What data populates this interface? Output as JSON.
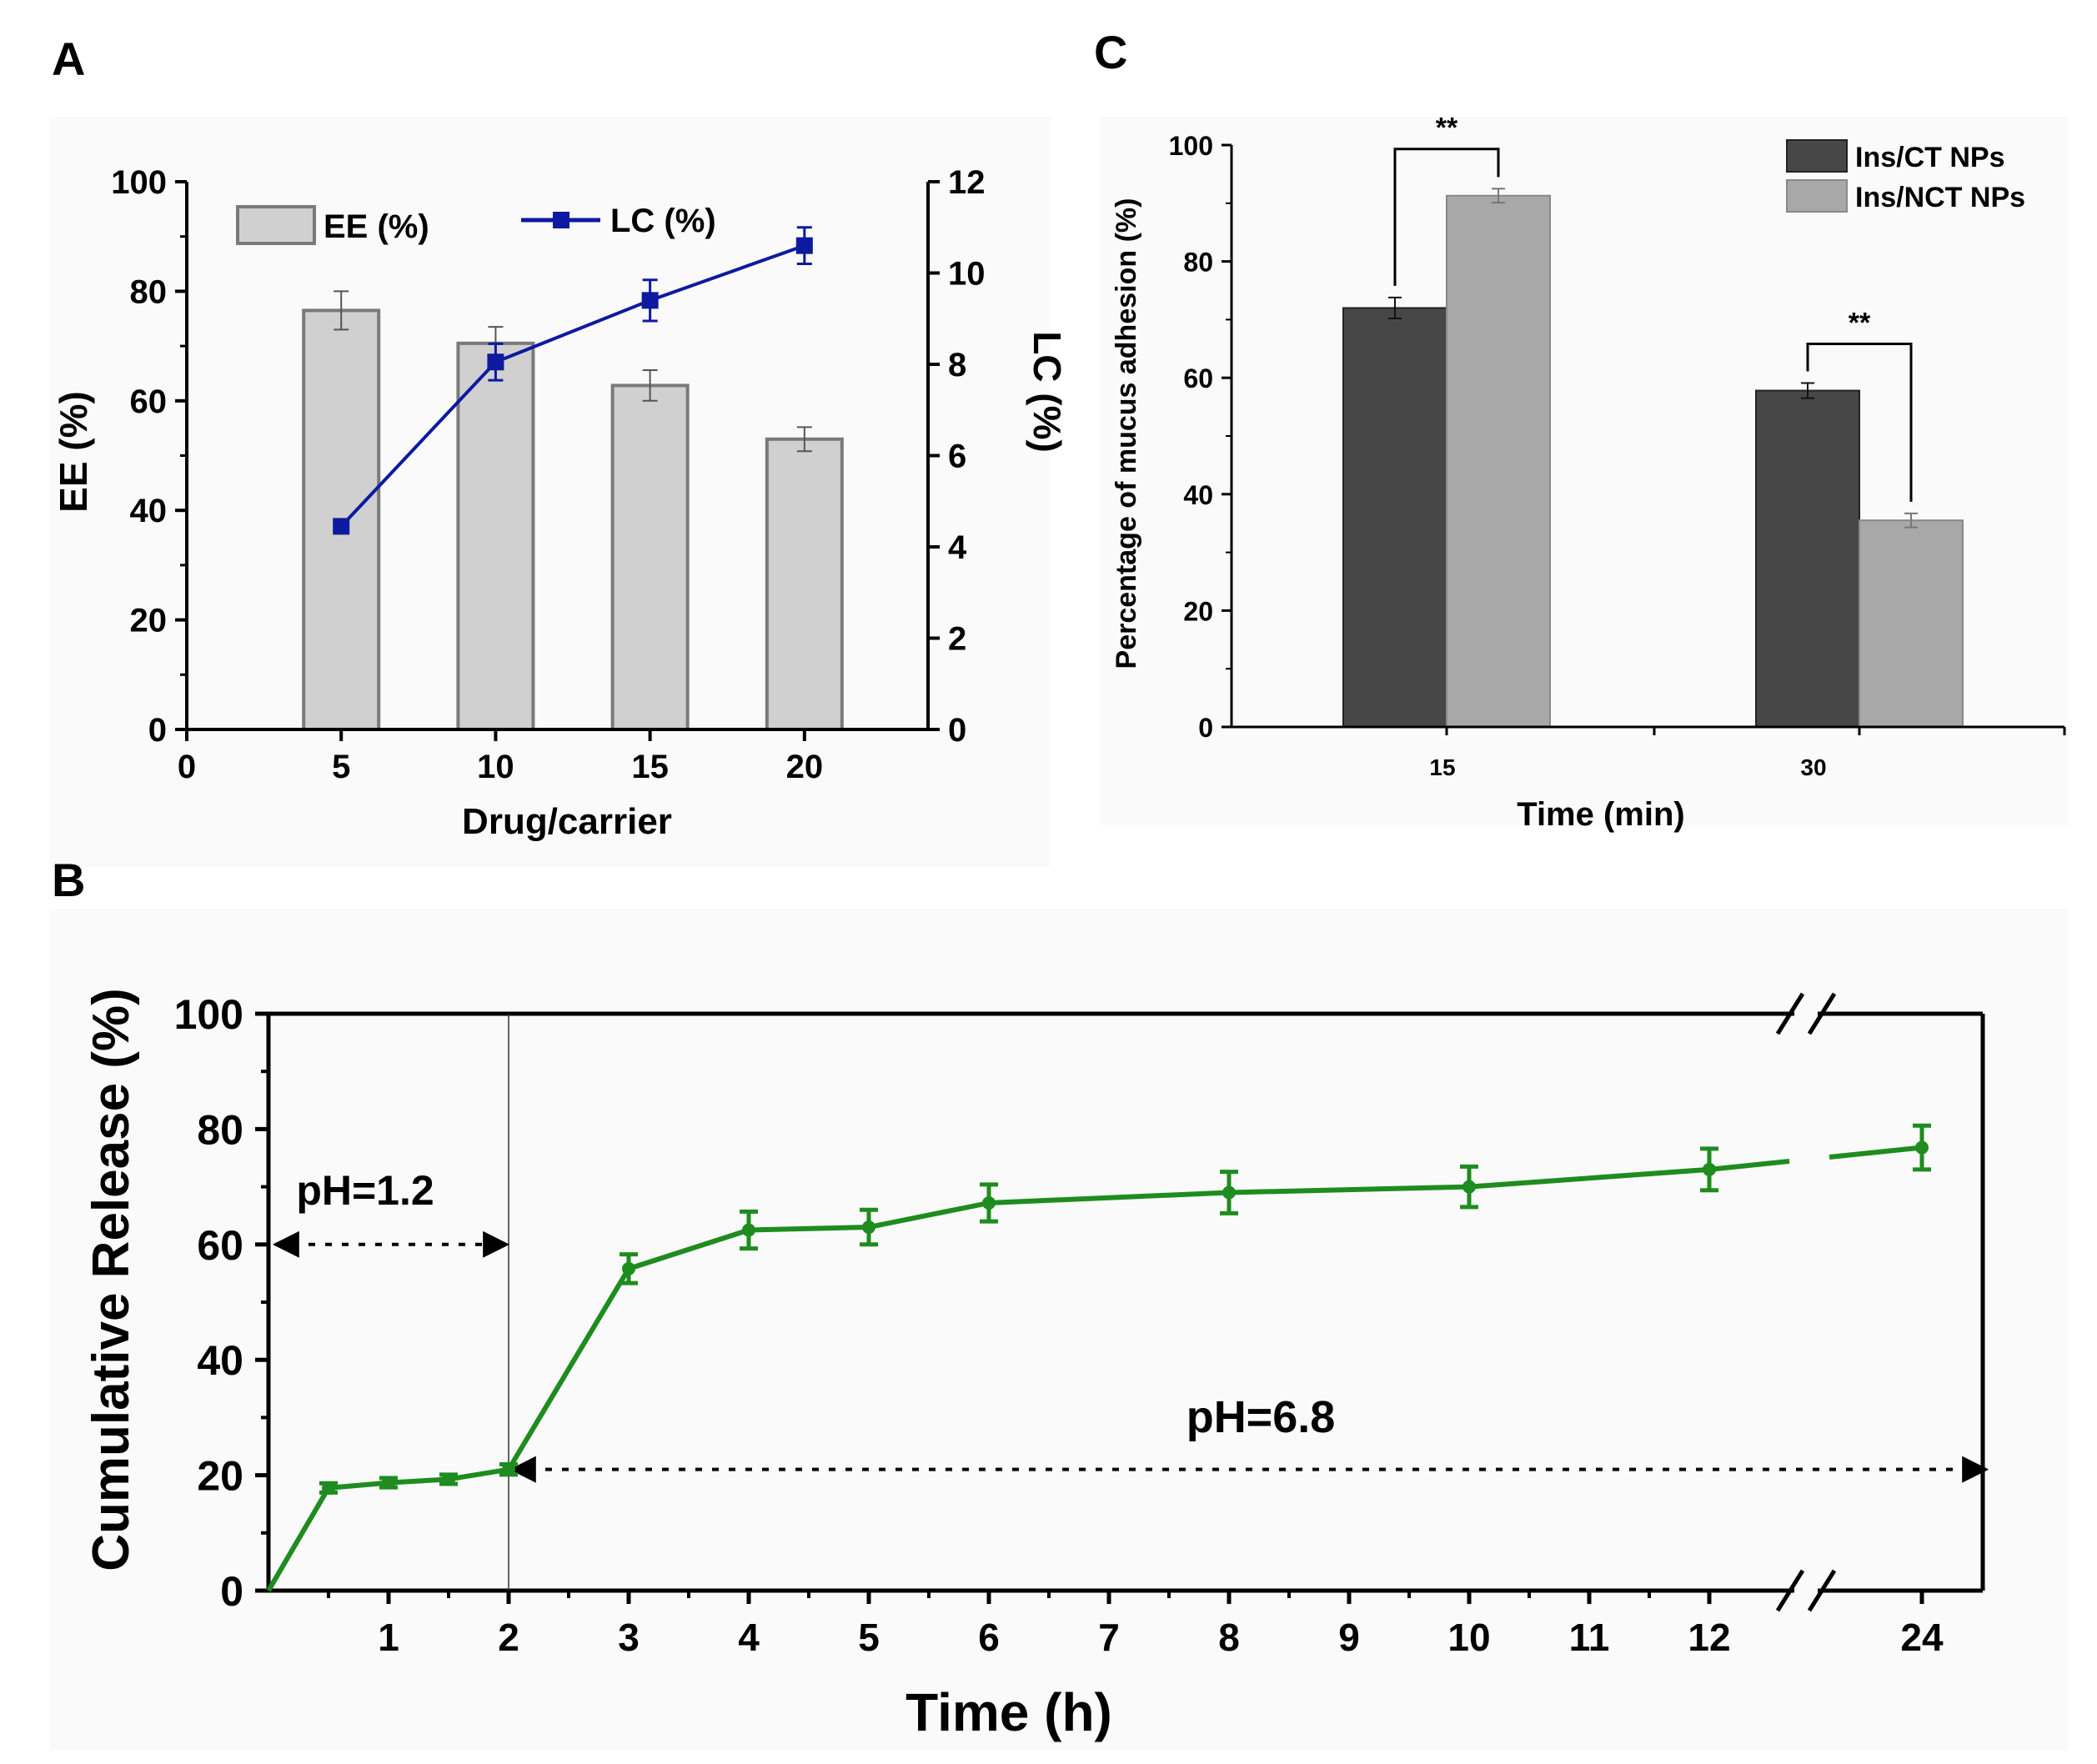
{
  "panel_labels": {
    "a": "A",
    "b": "B",
    "c": "C"
  },
  "chart_data": [
    {
      "id": "A",
      "type": "bar",
      "xlabel": "Drug/carrier",
      "ylabel": "EE (%)",
      "ylabel_right": "LC (%)",
      "xlim": [
        0,
        24
      ],
      "ylim": [
        0,
        100
      ],
      "ylim_right": [
        0,
        12
      ],
      "x_ticks": [
        0,
        5,
        10,
        15,
        20
      ],
      "y_ticks": [
        0,
        20,
        40,
        60,
        80,
        100
      ],
      "y_ticks_right": [
        0,
        2,
        4,
        6,
        8,
        10,
        12
      ],
      "categories": [
        5,
        10,
        15,
        20
      ],
      "series": [
        {
          "name": "EE (%)",
          "type": "bar",
          "axis": "left",
          "color": "#d0d0d0",
          "edge": "#7a7a7a",
          "values": [
            76.5,
            70.5,
            62.8,
            53.0
          ],
          "errors": [
            3.5,
            3.0,
            2.8,
            2.2
          ]
        },
        {
          "name": "LC (%)",
          "type": "line",
          "axis": "right",
          "color": "#0d1aa0",
          "values": [
            4.45,
            8.05,
            9.4,
            10.6
          ],
          "errors": [
            0.15,
            0.4,
            0.45,
            0.4
          ]
        }
      ]
    },
    {
      "id": "B",
      "type": "line",
      "xlabel": "Time (h)",
      "ylabel": "Cumulative Release (%)",
      "ylim": [
        0,
        100
      ],
      "y_ticks": [
        0,
        20,
        40,
        60,
        80,
        100
      ],
      "x_tick_labels": [
        "1",
        "2",
        "3",
        "4",
        "5",
        "6",
        "7",
        "8",
        "9",
        "10",
        "11",
        "12",
        "24"
      ],
      "x_tick_values": [
        1,
        2,
        3,
        4,
        5,
        6,
        7,
        8,
        9,
        10,
        11,
        12,
        24
      ],
      "axis_break": "between 12 and 24",
      "series": [
        {
          "name": "Cumulative Release",
          "color": "#1e8c1e",
          "x": [
            0,
            0.5,
            1,
            1.5,
            2,
            3,
            4,
            5,
            6,
            8,
            10,
            12,
            24
          ],
          "values": [
            0,
            17.8,
            18.7,
            19.3,
            21.0,
            55.8,
            62.5,
            63.0,
            67.2,
            69.0,
            70.0,
            73.0,
            76.8
          ],
          "errors": [
            0,
            0.8,
            0.8,
            0.8,
            0.9,
            2.5,
            3.2,
            3.0,
            3.2,
            3.6,
            3.5,
            3.6,
            3.8
          ]
        }
      ],
      "annotations": [
        {
          "text": "pH=1.2",
          "from": 0,
          "to": 2,
          "y": 60
        },
        {
          "text": "pH=6.8",
          "from": 2,
          "to": 24,
          "y": 21
        }
      ]
    },
    {
      "id": "C",
      "type": "bar",
      "xlabel": "Time (min)",
      "ylabel": "Percentage of mucus adhesion (%)",
      "ylim": [
        0,
        100
      ],
      "y_ticks": [
        0,
        20,
        40,
        60,
        80,
        100
      ],
      "categories": [
        "15",
        "30"
      ],
      "series": [
        {
          "name": "Ins/CT NPs",
          "color": "#474747",
          "values": [
            72.0,
            57.8
          ],
          "errors": [
            1.8,
            1.3
          ]
        },
        {
          "name": "Ins/NCT NPs",
          "color": "#a8a8a8",
          "values": [
            91.3,
            35.5
          ],
          "errors": [
            1.2,
            1.2
          ]
        }
      ],
      "significance": [
        {
          "category": "15",
          "text": "**"
        },
        {
          "category": "30",
          "text": "**"
        }
      ]
    }
  ]
}
